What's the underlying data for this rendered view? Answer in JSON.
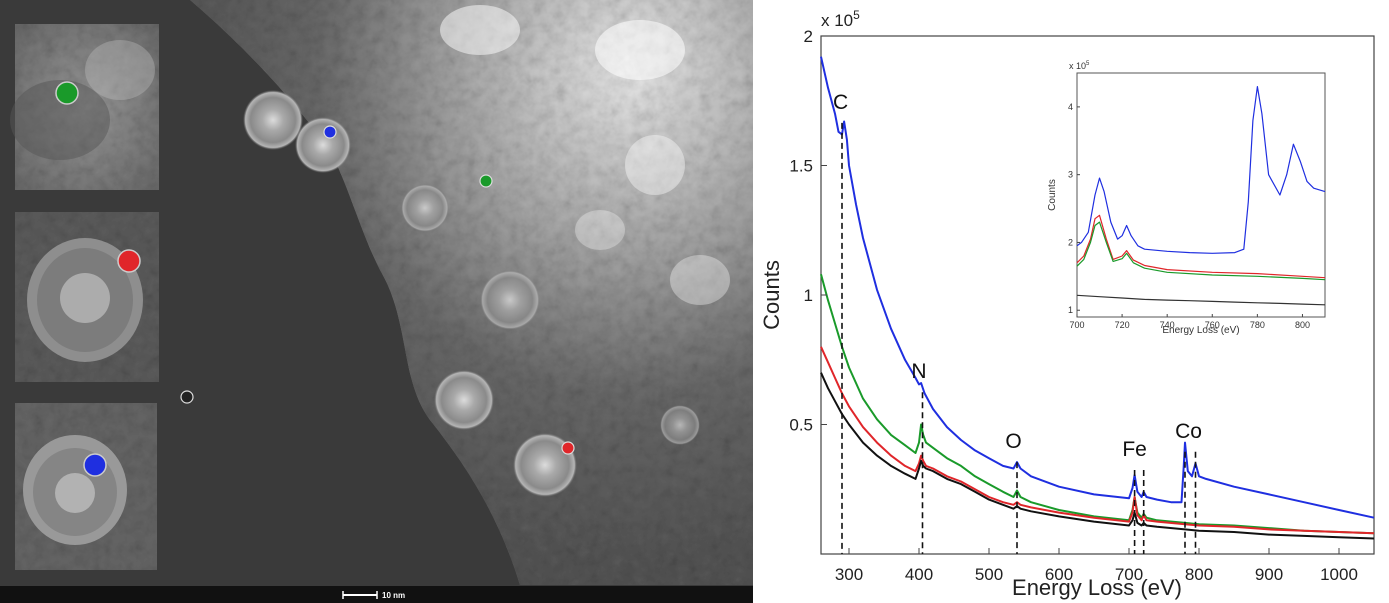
{
  "micrograph": {
    "scale_bar_label": "10 nm",
    "point_colors": {
      "green": "#1a9a2a",
      "red": "#e0262a",
      "blue": "#1f2fe0",
      "black": "#222222"
    }
  },
  "chart_data": [
    {
      "type": "line",
      "title": "",
      "xlabel": "Energy Loss (eV)",
      "ylabel": "Counts",
      "y_multiplier": "x 10",
      "y_multiplier_exp": "5",
      "xlim": [
        260,
        1050
      ],
      "ylim": [
        0,
        2
      ],
      "xticks": [
        300,
        400,
        500,
        600,
        700,
        800,
        900,
        1000
      ],
      "xtick_labels": [
        "300",
        "400",
        "500",
        "600",
        "700",
        "800",
        "900",
        "1000"
      ],
      "yticks": [
        0.5,
        1,
        1.5,
        2
      ],
      "ytick_labels": [
        "0.5",
        "1",
        "1.5",
        "2"
      ],
      "grid": false,
      "edge_labels": [
        {
          "label": "C",
          "x": 288,
          "y": 1.68,
          "lines": [
            290
          ]
        },
        {
          "label": "N",
          "x": 400,
          "y": 0.64,
          "lines": [
            405
          ]
        },
        {
          "label": "O",
          "x": 535,
          "y": 0.37,
          "lines": [
            540
          ]
        },
        {
          "label": "Fe",
          "x": 708,
          "y": 0.34,
          "lines": [
            708,
            721
          ]
        },
        {
          "label": "Co",
          "x": 785,
          "y": 0.41,
          "lines": [
            780,
            795
          ]
        }
      ],
      "series": [
        {
          "color": "#1f2fe0",
          "x": [
            260,
            270,
            280,
            285,
            290,
            293,
            297,
            300,
            310,
            320,
            340,
            360,
            380,
            395,
            400,
            403,
            408,
            420,
            440,
            460,
            480,
            500,
            520,
            535,
            540,
            545,
            560,
            600,
            650,
            700,
            705,
            708,
            712,
            718,
            721,
            725,
            740,
            760,
            775,
            778,
            780,
            784,
            790,
            795,
            800,
            810,
            850,
            900,
            950,
            1000,
            1050
          ],
          "y": [
            1.92,
            1.8,
            1.7,
            1.63,
            1.62,
            1.67,
            1.6,
            1.5,
            1.35,
            1.22,
            1.02,
            0.87,
            0.75,
            0.68,
            0.655,
            0.66,
            0.62,
            0.56,
            0.49,
            0.44,
            0.4,
            0.37,
            0.34,
            0.33,
            0.355,
            0.33,
            0.3,
            0.26,
            0.23,
            0.215,
            0.255,
            0.305,
            0.24,
            0.22,
            0.24,
            0.22,
            0.21,
            0.2,
            0.2,
            0.33,
            0.43,
            0.32,
            0.3,
            0.35,
            0.3,
            0.29,
            0.26,
            0.23,
            0.2,
            0.17,
            0.14
          ]
        },
        {
          "color": "#1a9a2a",
          "x": [
            260,
            270,
            280,
            290,
            300,
            320,
            340,
            360,
            380,
            395,
            400,
            403,
            406,
            410,
            420,
            440,
            460,
            480,
            500,
            520,
            535,
            540,
            545,
            560,
            600,
            650,
            700,
            705,
            708,
            712,
            718,
            721,
            725,
            740,
            780,
            800,
            850,
            900,
            950,
            1000,
            1050
          ],
          "y": [
            1.08,
            0.98,
            0.89,
            0.8,
            0.72,
            0.6,
            0.52,
            0.46,
            0.42,
            0.39,
            0.43,
            0.5,
            0.46,
            0.43,
            0.41,
            0.37,
            0.34,
            0.3,
            0.27,
            0.24,
            0.22,
            0.245,
            0.22,
            0.2,
            0.17,
            0.145,
            0.13,
            0.17,
            0.22,
            0.16,
            0.14,
            0.155,
            0.14,
            0.13,
            0.12,
            0.115,
            0.11,
            0.1,
            0.09,
            0.085,
            0.08
          ]
        },
        {
          "color": "#e0262a",
          "x": [
            260,
            270,
            280,
            290,
            300,
            320,
            340,
            360,
            380,
            395,
            400,
            403,
            406,
            410,
            420,
            440,
            460,
            480,
            500,
            520,
            535,
            540,
            545,
            560,
            600,
            650,
            700,
            705,
            708,
            712,
            718,
            721,
            725,
            740,
            780,
            800,
            850,
            900,
            950,
            1000,
            1050
          ],
          "y": [
            0.8,
            0.74,
            0.68,
            0.62,
            0.57,
            0.49,
            0.43,
            0.38,
            0.34,
            0.32,
            0.35,
            0.38,
            0.36,
            0.34,
            0.33,
            0.3,
            0.28,
            0.25,
            0.22,
            0.2,
            0.19,
            0.2,
            0.19,
            0.18,
            0.16,
            0.14,
            0.125,
            0.16,
            0.22,
            0.15,
            0.13,
            0.15,
            0.13,
            0.125,
            0.115,
            0.11,
            0.105,
            0.095,
            0.09,
            0.085,
            0.08
          ]
        },
        {
          "color": "#111111",
          "x": [
            260,
            270,
            280,
            290,
            300,
            320,
            340,
            360,
            380,
            395,
            400,
            403,
            406,
            410,
            420,
            440,
            460,
            480,
            500,
            520,
            535,
            540,
            545,
            560,
            600,
            650,
            700,
            705,
            708,
            712,
            718,
            721,
            725,
            740,
            780,
            800,
            850,
            900,
            950,
            1000,
            1050
          ],
          "y": [
            0.7,
            0.64,
            0.59,
            0.54,
            0.5,
            0.43,
            0.38,
            0.34,
            0.31,
            0.29,
            0.33,
            0.36,
            0.34,
            0.33,
            0.32,
            0.29,
            0.27,
            0.24,
            0.21,
            0.19,
            0.175,
            0.185,
            0.175,
            0.165,
            0.145,
            0.125,
            0.11,
            0.13,
            0.16,
            0.12,
            0.11,
            0.12,
            0.11,
            0.105,
            0.095,
            0.09,
            0.085,
            0.075,
            0.07,
            0.065,
            0.06
          ]
        }
      ]
    },
    {
      "type": "line",
      "title": "",
      "xlabel": "Energy Loss (eV)",
      "ylabel": "Counts",
      "y_multiplier": "x 10",
      "y_multiplier_exp": "5",
      "xlim": [
        700,
        810
      ],
      "ylim": [
        0.9,
        4.5
      ],
      "xticks": [
        700,
        720,
        740,
        760,
        780,
        800
      ],
      "xtick_labels": [
        "700",
        "720",
        "740",
        "760",
        "780",
        "800"
      ],
      "yticks": [
        1,
        2,
        3,
        4
      ],
      "ytick_labels": [
        "1",
        "2",
        "3",
        "4"
      ],
      "grid": false,
      "series": [
        {
          "color": "#1f2fe0",
          "x": [
            700,
            702,
            705,
            708,
            710,
            712,
            715,
            718,
            720,
            722,
            724,
            727,
            730,
            740,
            750,
            760,
            770,
            774,
            776,
            778,
            780,
            782,
            785,
            790,
            793,
            796,
            799,
            802,
            805,
            810
          ],
          "y": [
            1.95,
            2.0,
            2.15,
            2.7,
            2.95,
            2.75,
            2.3,
            2.05,
            2.1,
            2.25,
            2.1,
            1.95,
            1.9,
            1.87,
            1.85,
            1.84,
            1.85,
            1.9,
            2.6,
            3.8,
            4.3,
            3.9,
            3.0,
            2.7,
            3.0,
            3.45,
            3.2,
            2.9,
            2.8,
            2.75
          ]
        },
        {
          "color": "#e0262a",
          "x": [
            700,
            703,
            706,
            708,
            710,
            713,
            716,
            720,
            722,
            725,
            730,
            740,
            760,
            780,
            800,
            810
          ],
          "y": [
            1.7,
            1.8,
            2.05,
            2.35,
            2.4,
            2.05,
            1.75,
            1.8,
            1.88,
            1.74,
            1.66,
            1.6,
            1.56,
            1.54,
            1.5,
            1.48
          ]
        },
        {
          "color": "#1a9a2a",
          "x": [
            700,
            703,
            706,
            708,
            710,
            713,
            716,
            720,
            722,
            725,
            730,
            740,
            760,
            780,
            800,
            810
          ],
          "y": [
            1.65,
            1.75,
            2.0,
            2.25,
            2.3,
            2.0,
            1.72,
            1.76,
            1.84,
            1.7,
            1.62,
            1.56,
            1.52,
            1.5,
            1.47,
            1.45
          ]
        },
        {
          "color": "#333333",
          "x": [
            700,
            710,
            720,
            730,
            740,
            750,
            760,
            770,
            780,
            790,
            800,
            810
          ],
          "y": [
            1.22,
            1.2,
            1.18,
            1.16,
            1.15,
            1.14,
            1.13,
            1.12,
            1.11,
            1.1,
            1.09,
            1.08
          ]
        }
      ]
    }
  ]
}
